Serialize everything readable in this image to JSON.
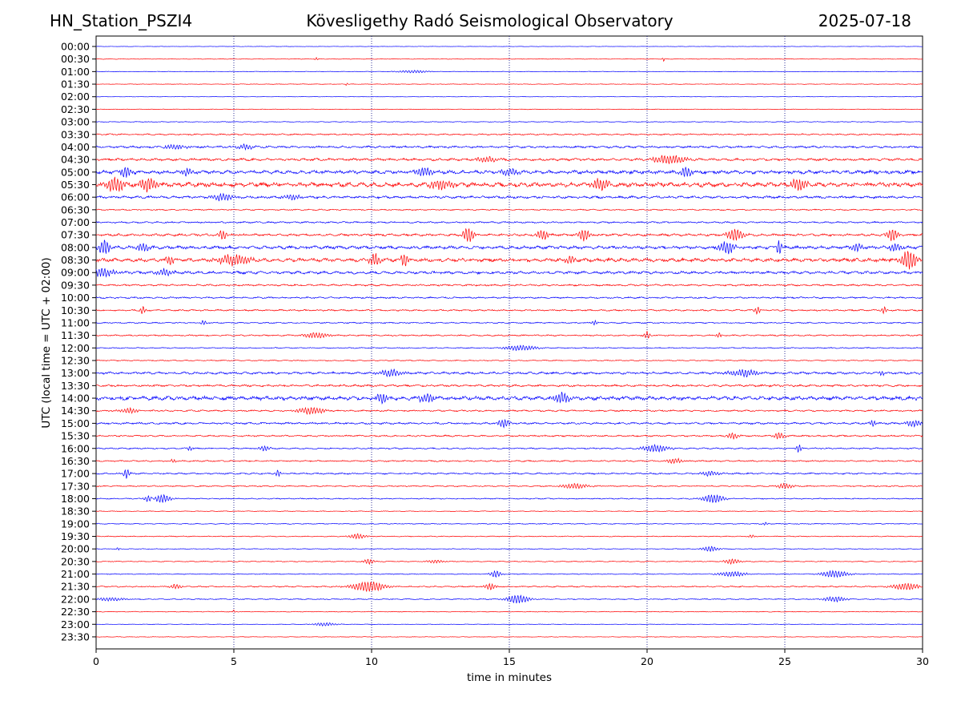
{
  "header": {
    "station": "HN_Station_PSZI4",
    "title": "Kövesligethy Radó Seismological Observatory",
    "date": "2025-07-18"
  },
  "chart_data": {
    "type": "line",
    "xlabel": "time in minutes",
    "ylabel": "UTC (local time = UTC + 02:00)",
    "xlim": [
      0,
      30
    ],
    "xticks": [
      0,
      5,
      10,
      15,
      20,
      25,
      30
    ],
    "grid": "vertical dotted at 5-minute ticks",
    "rows": [
      "00:00",
      "00:30",
      "01:00",
      "01:30",
      "02:00",
      "02:30",
      "03:00",
      "03:30",
      "04:00",
      "04:30",
      "05:00",
      "05:30",
      "06:00",
      "06:30",
      "07:00",
      "07:30",
      "08:00",
      "08:30",
      "09:00",
      "09:30",
      "10:00",
      "10:30",
      "11:00",
      "11:30",
      "12:00",
      "12:30",
      "13:00",
      "13:30",
      "14:00",
      "14:30",
      "15:00",
      "15:30",
      "16:00",
      "16:30",
      "17:00",
      "17:30",
      "18:00",
      "18:30",
      "19:00",
      "19:30",
      "20:00",
      "20:30",
      "21:00",
      "21:30",
      "22:00",
      "22:30",
      "23:00",
      "23:30"
    ],
    "row_colors": [
      "#0000ff",
      "#ff0000"
    ],
    "noise_levels": [
      0.2,
      0.3,
      0.3,
      0.3,
      0.2,
      0.3,
      0.4,
      0.8,
      1.2,
      1.4,
      2.0,
      2.6,
      1.4,
      0.7,
      0.9,
      1.3,
      1.8,
      2.0,
      1.6,
      1.0,
      0.9,
      0.9,
      0.7,
      0.8,
      0.6,
      0.6,
      1.3,
      1.2,
      2.2,
      0.9,
      1.1,
      0.9,
      0.8,
      0.8,
      0.9,
      0.7,
      0.6,
      0.4,
      0.5,
      0.5,
      0.4,
      0.5,
      0.5,
      0.7,
      0.6,
      0.4,
      0.3,
      0.3
    ],
    "events": [
      {
        "row": 1,
        "x": 8.0,
        "a": 2,
        "w": 0.05
      },
      {
        "row": 1,
        "x": 20.6,
        "a": 3,
        "w": 0.04
      },
      {
        "row": 2,
        "x": 11.5,
        "a": 1.5,
        "w": 0.6
      },
      {
        "row": 3,
        "x": 9.1,
        "a": 1.5,
        "w": 0.05
      },
      {
        "row": 8,
        "x": 2.9,
        "a": 3,
        "w": 0.4
      },
      {
        "row": 8,
        "x": 5.4,
        "a": 3,
        "w": 0.3
      },
      {
        "row": 9,
        "x": 20.8,
        "a": 5,
        "w": 0.6
      },
      {
        "row": 9,
        "x": 14.2,
        "a": 3,
        "w": 0.4
      },
      {
        "row": 10,
        "x": 1.1,
        "a": 6,
        "w": 0.2
      },
      {
        "row": 10,
        "x": 3.3,
        "a": 5,
        "w": 0.2
      },
      {
        "row": 10,
        "x": 11.9,
        "a": 5,
        "w": 0.3
      },
      {
        "row": 10,
        "x": 21.4,
        "a": 6,
        "w": 0.2
      },
      {
        "row": 10,
        "x": 15.0,
        "a": 4,
        "w": 0.3
      },
      {
        "row": 11,
        "x": 0.7,
        "a": 9,
        "w": 0.3
      },
      {
        "row": 11,
        "x": 1.9,
        "a": 9,
        "w": 0.3
      },
      {
        "row": 11,
        "x": 12.5,
        "a": 6,
        "w": 0.4
      },
      {
        "row": 11,
        "x": 18.3,
        "a": 7,
        "w": 0.3
      },
      {
        "row": 11,
        "x": 25.5,
        "a": 7,
        "w": 0.3
      },
      {
        "row": 12,
        "x": 4.6,
        "a": 4,
        "w": 0.4
      },
      {
        "row": 12,
        "x": 7.1,
        "a": 3,
        "w": 0.3
      },
      {
        "row": 15,
        "x": 4.6,
        "a": 6,
        "w": 0.15
      },
      {
        "row": 15,
        "x": 13.5,
        "a": 9,
        "w": 0.2
      },
      {
        "row": 15,
        "x": 16.2,
        "a": 6,
        "w": 0.2
      },
      {
        "row": 15,
        "x": 17.7,
        "a": 7,
        "w": 0.2
      },
      {
        "row": 15,
        "x": 23.2,
        "a": 7,
        "w": 0.3
      },
      {
        "row": 15,
        "x": 28.9,
        "a": 8,
        "w": 0.2
      },
      {
        "row": 16,
        "x": 0.3,
        "a": 9,
        "w": 0.2
      },
      {
        "row": 16,
        "x": 1.7,
        "a": 5,
        "w": 0.2
      },
      {
        "row": 16,
        "x": 22.9,
        "a": 7,
        "w": 0.3
      },
      {
        "row": 16,
        "x": 24.8,
        "a": 9,
        "w": 0.1
      },
      {
        "row": 16,
        "x": 27.6,
        "a": 5,
        "w": 0.2
      },
      {
        "row": 16,
        "x": 29.0,
        "a": 5,
        "w": 0.2
      },
      {
        "row": 17,
        "x": 5.0,
        "a": 6,
        "w": 0.6
      },
      {
        "row": 17,
        "x": 10.1,
        "a": 7,
        "w": 0.2
      },
      {
        "row": 17,
        "x": 11.2,
        "a": 8,
        "w": 0.15
      },
      {
        "row": 17,
        "x": 17.2,
        "a": 6,
        "w": 0.15
      },
      {
        "row": 17,
        "x": 29.5,
        "a": 11,
        "w": 0.3
      },
      {
        "row": 17,
        "x": 2.7,
        "a": 5,
        "w": 0.15
      },
      {
        "row": 18,
        "x": 0.2,
        "a": 5,
        "w": 0.5
      },
      {
        "row": 18,
        "x": 2.5,
        "a": 4,
        "w": 0.3
      },
      {
        "row": 21,
        "x": 1.7,
        "a": 5,
        "w": 0.1
      },
      {
        "row": 21,
        "x": 24.0,
        "a": 5,
        "w": 0.1
      },
      {
        "row": 21,
        "x": 28.6,
        "a": 4,
        "w": 0.1
      },
      {
        "row": 22,
        "x": 3.9,
        "a": 3,
        "w": 0.1
      },
      {
        "row": 22,
        "x": 18.1,
        "a": 3,
        "w": 0.1
      },
      {
        "row": 23,
        "x": 8.0,
        "a": 3,
        "w": 0.5
      },
      {
        "row": 23,
        "x": 20.0,
        "a": 5,
        "w": 0.1
      },
      {
        "row": 23,
        "x": 22.6,
        "a": 3,
        "w": 0.1
      },
      {
        "row": 24,
        "x": 15.4,
        "a": 3,
        "w": 0.6
      },
      {
        "row": 26,
        "x": 10.7,
        "a": 4,
        "w": 0.4
      },
      {
        "row": 26,
        "x": 23.5,
        "a": 4,
        "w": 0.5
      },
      {
        "row": 26,
        "x": 28.5,
        "a": 3,
        "w": 0.1
      },
      {
        "row": 28,
        "x": 10.4,
        "a": 6,
        "w": 0.2
      },
      {
        "row": 28,
        "x": 12.0,
        "a": 5,
        "w": 0.3
      },
      {
        "row": 28,
        "x": 16.9,
        "a": 6,
        "w": 0.3
      },
      {
        "row": 29,
        "x": 7.8,
        "a": 4,
        "w": 0.5
      },
      {
        "row": 29,
        "x": 1.2,
        "a": 3,
        "w": 0.3
      },
      {
        "row": 30,
        "x": 14.8,
        "a": 5,
        "w": 0.2
      },
      {
        "row": 30,
        "x": 29.7,
        "a": 4,
        "w": 0.3
      },
      {
        "row": 30,
        "x": 28.2,
        "a": 4,
        "w": 0.1
      },
      {
        "row": 31,
        "x": 23.1,
        "a": 4,
        "w": 0.2
      },
      {
        "row": 31,
        "x": 24.8,
        "a": 4,
        "w": 0.2
      },
      {
        "row": 32,
        "x": 20.3,
        "a": 4,
        "w": 0.5
      },
      {
        "row": 32,
        "x": 25.5,
        "a": 5,
        "w": 0.1
      },
      {
        "row": 32,
        "x": 3.4,
        "a": 3,
        "w": 0.1
      },
      {
        "row": 32,
        "x": 6.1,
        "a": 3,
        "w": 0.2
      },
      {
        "row": 33,
        "x": 21.0,
        "a": 3,
        "w": 0.3
      },
      {
        "row": 33,
        "x": 2.8,
        "a": 2,
        "w": 0.1
      },
      {
        "row": 34,
        "x": 1.1,
        "a": 6,
        "w": 0.1
      },
      {
        "row": 34,
        "x": 6.6,
        "a": 4,
        "w": 0.1
      },
      {
        "row": 34,
        "x": 22.3,
        "a": 3,
        "w": 0.3
      },
      {
        "row": 35,
        "x": 17.4,
        "a": 3,
        "w": 0.5
      },
      {
        "row": 35,
        "x": 25.0,
        "a": 3,
        "w": 0.3
      },
      {
        "row": 36,
        "x": 2.4,
        "a": 5,
        "w": 0.3
      },
      {
        "row": 36,
        "x": 1.9,
        "a": 4,
        "w": 0.15
      },
      {
        "row": 36,
        "x": 22.4,
        "a": 5,
        "w": 0.4
      },
      {
        "row": 38,
        "x": 24.3,
        "a": 2,
        "w": 0.1
      },
      {
        "row": 39,
        "x": 9.5,
        "a": 3,
        "w": 0.3
      },
      {
        "row": 39,
        "x": 23.8,
        "a": 2,
        "w": 0.1
      },
      {
        "row": 40,
        "x": 22.3,
        "a": 3,
        "w": 0.3
      },
      {
        "row": 40,
        "x": 0.8,
        "a": 2,
        "w": 0.05
      },
      {
        "row": 41,
        "x": 9.9,
        "a": 3,
        "w": 0.2
      },
      {
        "row": 41,
        "x": 12.3,
        "a": 2,
        "w": 0.3
      },
      {
        "row": 41,
        "x": 23.1,
        "a": 3,
        "w": 0.3
      },
      {
        "row": 42,
        "x": 14.5,
        "a": 4,
        "w": 0.2
      },
      {
        "row": 42,
        "x": 23.1,
        "a": 3,
        "w": 0.5
      },
      {
        "row": 42,
        "x": 26.8,
        "a": 4,
        "w": 0.5
      },
      {
        "row": 43,
        "x": 2.9,
        "a": 3,
        "w": 0.2
      },
      {
        "row": 43,
        "x": 9.9,
        "a": 6,
        "w": 0.6
      },
      {
        "row": 43,
        "x": 14.3,
        "a": 4,
        "w": 0.2
      },
      {
        "row": 43,
        "x": 29.4,
        "a": 4,
        "w": 0.5
      },
      {
        "row": 44,
        "x": 0.5,
        "a": 2,
        "w": 0.5
      },
      {
        "row": 44,
        "x": 15.3,
        "a": 5,
        "w": 0.4
      },
      {
        "row": 44,
        "x": 26.8,
        "a": 3,
        "w": 0.4
      },
      {
        "row": 45,
        "x": 5.0,
        "a": 2,
        "w": 0.05
      },
      {
        "row": 46,
        "x": 8.3,
        "a": 2,
        "w": 0.4
      }
    ]
  }
}
